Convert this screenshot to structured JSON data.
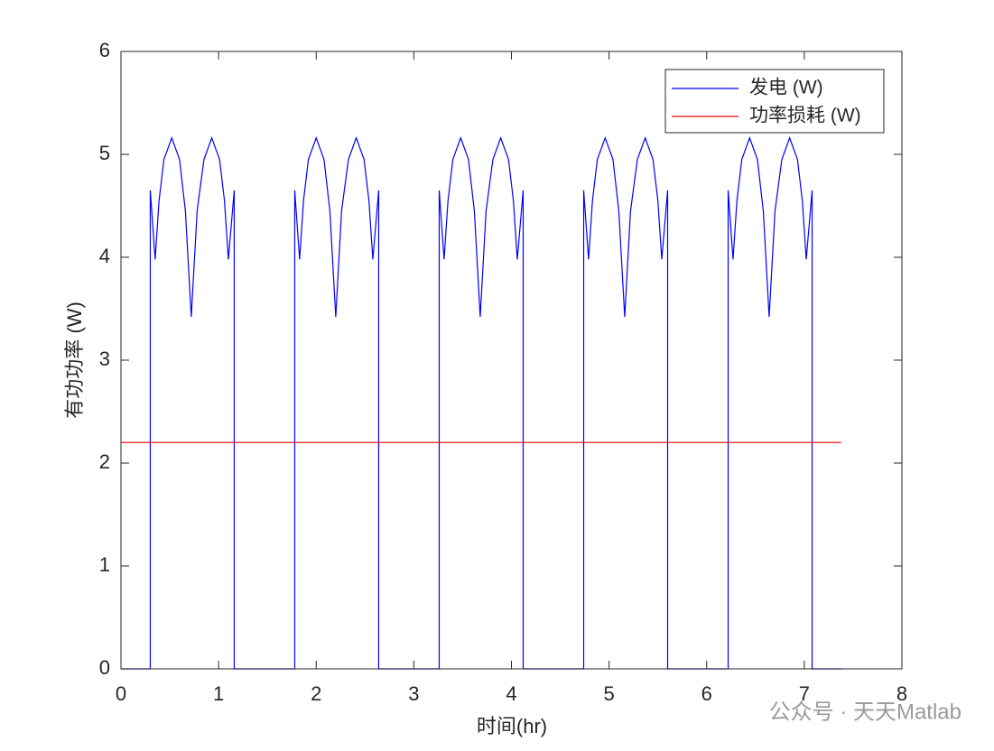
{
  "chart_data": {
    "type": "line",
    "xlabel": "时间(hr)",
    "ylabel": "有功功率 (W)",
    "series": [
      {
        "name": "发电 (W)",
        "color": "#0000ff",
        "x": [
          0,
          0.3,
          0.3,
          0.35,
          0.39,
          0.44,
          0.52,
          0.6,
          0.66,
          0.72,
          0.78,
          0.85,
          0.93,
          1.01,
          1.06,
          1.1,
          1.16,
          1.16,
          1.78,
          1.78,
          1.83,
          1.87,
          1.92,
          2.0,
          2.08,
          2.14,
          2.2,
          2.26,
          2.33,
          2.41,
          2.49,
          2.54,
          2.58,
          2.64,
          2.64,
          3.26,
          3.26,
          3.31,
          3.35,
          3.4,
          3.48,
          3.56,
          3.62,
          3.68,
          3.74,
          3.81,
          3.89,
          3.97,
          4.02,
          4.06,
          4.12,
          4.12,
          4.74,
          4.74,
          4.79,
          4.83,
          4.88,
          4.96,
          5.04,
          5.1,
          5.16,
          5.22,
          5.29,
          5.37,
          5.45,
          5.5,
          5.54,
          5.6,
          5.6,
          6.22,
          6.22,
          6.27,
          6.31,
          6.36,
          6.44,
          6.52,
          6.58,
          6.64,
          6.7,
          6.77,
          6.85,
          6.93,
          6.98,
          7.02,
          7.08,
          7.08,
          7.38
        ],
        "values": [
          0,
          0,
          4.65,
          3.98,
          4.55,
          4.95,
          5.16,
          4.95,
          4.45,
          3.42,
          4.45,
          4.95,
          5.16,
          4.95,
          4.55,
          3.98,
          4.65,
          0,
          0,
          4.65,
          3.98,
          4.55,
          4.95,
          5.16,
          4.95,
          4.45,
          3.42,
          4.45,
          4.95,
          5.16,
          4.95,
          4.55,
          3.98,
          4.65,
          0,
          0,
          4.65,
          3.98,
          4.55,
          4.95,
          5.16,
          4.95,
          4.45,
          3.42,
          4.45,
          4.95,
          5.16,
          4.95,
          4.55,
          3.98,
          4.65,
          0,
          0,
          4.65,
          3.98,
          4.55,
          4.95,
          5.16,
          4.95,
          4.45,
          3.42,
          4.45,
          4.95,
          5.16,
          4.95,
          4.55,
          3.98,
          4.65,
          0,
          0,
          4.65,
          3.98,
          4.55,
          4.95,
          5.16,
          4.95,
          4.45,
          3.42,
          4.45,
          4.95,
          5.16,
          4.95,
          4.55,
          3.98,
          4.65,
          0,
          0
        ]
      },
      {
        "name": "功率损耗 (W)",
        "color": "#ff0000",
        "x": [
          0,
          7.38
        ],
        "values": [
          2.2,
          2.2
        ]
      }
    ],
    "xlim": [
      0,
      8
    ],
    "xticks": [
      0,
      1,
      2,
      3,
      4,
      5,
      6,
      7,
      8
    ],
    "ylim": [
      0,
      6
    ],
    "yticks": [
      0,
      1,
      2,
      3,
      4,
      5,
      6
    ],
    "legend": "upper right",
    "watermark": "公众号 · 天天Matlab"
  }
}
